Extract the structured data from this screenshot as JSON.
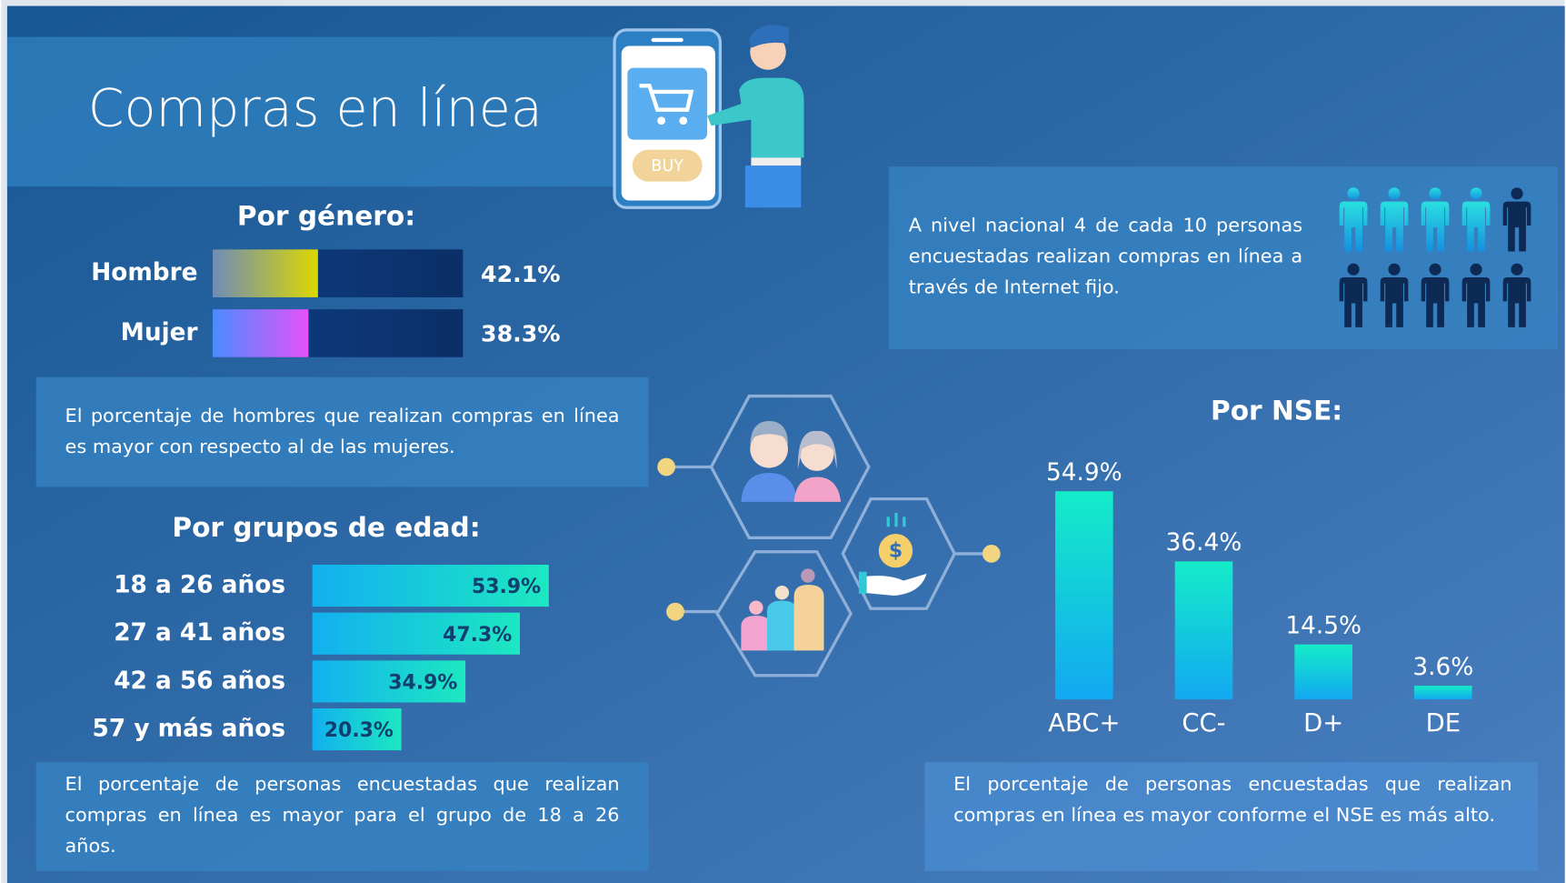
{
  "title": "Compras en línea",
  "illustration": {
    "button": "BUY"
  },
  "notes": {
    "gender": "El porcentaje de hombres que realizan compras en línea es mayor con respecto al de las mujeres.",
    "age": "El porcentaje de personas encuestadas que realizan compras en línea es mayor para el grupo de 18 a 26 años.",
    "national": "A nivel nacional 4 de cada 10 personas encuestadas realizan compras en línea a través de Internet fijo.",
    "nse": "El porcentaje de personas encuestadas que realizan compras en línea es mayor conforme el NSE es más alto."
  },
  "chart_data": [
    {
      "type": "bar",
      "orientation": "horizontal",
      "title": "Por género:",
      "categories": [
        "Hombre",
        "Mujer"
      ],
      "values": [
        42.1,
        38.3
      ],
      "value_labels": [
        "42.1%",
        "38.3%"
      ],
      "colors": [
        "#dcd800",
        "#e552f8"
      ],
      "xlim": [
        0,
        100
      ]
    },
    {
      "type": "bar",
      "orientation": "horizontal",
      "title": "Por grupos de edad:",
      "categories": [
        "18 a 26 años",
        "27 a 41 años",
        "42 a 56 años",
        "57 y más años"
      ],
      "values": [
        53.9,
        47.3,
        34.9,
        20.3
      ],
      "value_labels": [
        "53.9%",
        "47.3%",
        "34.9%",
        "20.3%"
      ],
      "color": "#1de8c0",
      "xlim": [
        0,
        100
      ]
    },
    {
      "type": "bar",
      "orientation": "vertical",
      "title": "Por NSE:",
      "categories": [
        "ABC+",
        "CC-",
        "D+",
        "DE"
      ],
      "values": [
        54.9,
        36.4,
        14.5,
        3.6
      ],
      "value_labels": [
        "54.9%",
        "36.4%",
        "14.5%",
        "3.6%"
      ],
      "color": "#14ecc8",
      "ylim": [
        0,
        100
      ]
    }
  ]
}
